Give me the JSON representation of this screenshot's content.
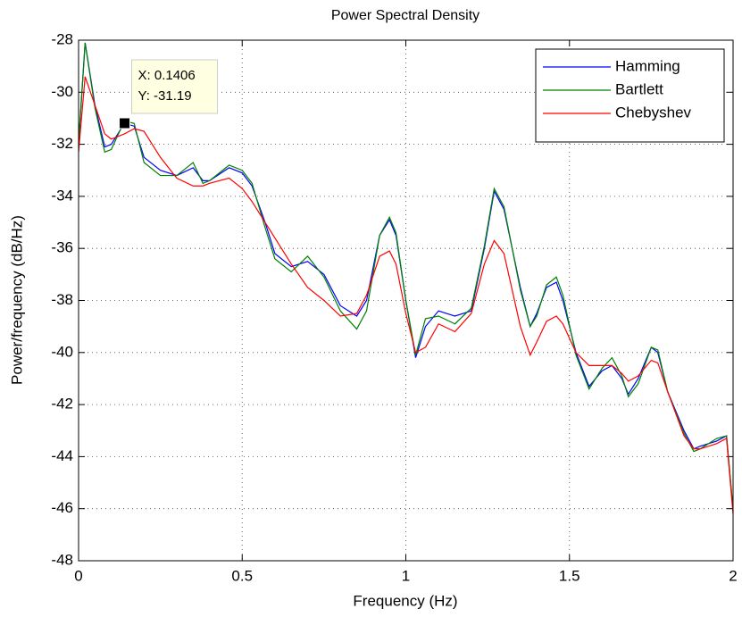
{
  "chart_data": {
    "type": "line",
    "title": "Power Spectral Density",
    "x_label": "Frequency (Hz)",
    "y_label": "Power/frequency (dB/Hz)",
    "x": [
      0,
      0.02,
      0.05,
      0.08,
      0.1,
      0.14,
      0.17,
      0.2,
      0.25,
      0.3,
      0.35,
      0.38,
      0.4,
      0.46,
      0.5,
      0.53,
      0.57,
      0.6,
      0.65,
      0.7,
      0.75,
      0.8,
      0.85,
      0.88,
      0.92,
      0.95,
      0.97,
      1.0,
      1.03,
      1.06,
      1.1,
      1.15,
      1.2,
      1.24,
      1.27,
      1.3,
      1.35,
      1.38,
      1.4,
      1.43,
      1.46,
      1.48,
      1.52,
      1.56,
      1.6,
      1.63,
      1.66,
      1.68,
      1.71,
      1.75,
      1.77,
      1.8,
      1.85,
      1.88,
      1.9,
      1.95,
      1.98,
      2.0
    ],
    "series": [
      {
        "name": "Hamming",
        "color": "#0000ff",
        "values": [
          -32.0,
          -28.1,
          -30.5,
          -32.1,
          -32.0,
          -31.2,
          -31.3,
          -32.5,
          -33.0,
          -33.2,
          -32.9,
          -33.4,
          -33.4,
          -32.9,
          -33.1,
          -33.6,
          -35.0,
          -36.2,
          -36.7,
          -36.5,
          -37.0,
          -38.2,
          -38.6,
          -38.0,
          -35.5,
          -34.9,
          -35.5,
          -38.0,
          -40.2,
          -39.0,
          -38.4,
          -38.6,
          -38.4,
          -36.0,
          -33.8,
          -34.5,
          -37.5,
          -39.0,
          -38.5,
          -37.5,
          -37.3,
          -38.0,
          -40.0,
          -41.3,
          -40.7,
          -40.5,
          -41.0,
          -41.6,
          -41.0,
          -39.8,
          -40.0,
          -41.5,
          -43.0,
          -43.7,
          -43.6,
          -43.4,
          -43.2,
          -46.1
        ]
      },
      {
        "name": "Bartlett",
        "color": "#008000",
        "values": [
          -31.9,
          -28.1,
          -30.6,
          -32.3,
          -32.2,
          -31.1,
          -31.2,
          -32.7,
          -33.2,
          -33.2,
          -32.7,
          -33.5,
          -33.4,
          -32.8,
          -33.0,
          -33.5,
          -35.2,
          -36.4,
          -36.9,
          -36.3,
          -37.1,
          -38.4,
          -39.1,
          -38.4,
          -35.5,
          -34.8,
          -35.4,
          -38.0,
          -40.1,
          -38.7,
          -38.6,
          -38.9,
          -38.3,
          -35.9,
          -33.7,
          -34.4,
          -37.6,
          -39.0,
          -38.6,
          -37.4,
          -37.1,
          -37.8,
          -40.1,
          -41.4,
          -40.6,
          -40.2,
          -40.9,
          -41.7,
          -41.2,
          -39.8,
          -39.9,
          -41.5,
          -43.1,
          -43.8,
          -43.7,
          -43.3,
          -43.2,
          -46.0
        ]
      },
      {
        "name": "Chebyshev",
        "color": "#ff0000",
        "values": [
          -32.3,
          -29.4,
          -30.5,
          -31.6,
          -31.8,
          -31.6,
          -31.4,
          -31.5,
          -32.5,
          -33.3,
          -33.6,
          -33.6,
          -33.5,
          -33.3,
          -33.7,
          -34.2,
          -35.0,
          -35.6,
          -36.6,
          -37.5,
          -38.0,
          -38.6,
          -38.5,
          -37.8,
          -36.3,
          -36.1,
          -36.6,
          -38.5,
          -40.0,
          -39.8,
          -38.9,
          -39.2,
          -38.5,
          -36.6,
          -35.7,
          -36.2,
          -39.0,
          -40.1,
          -39.6,
          -38.8,
          -38.6,
          -38.9,
          -40.0,
          -40.5,
          -40.5,
          -40.5,
          -40.8,
          -41.1,
          -40.9,
          -40.3,
          -40.4,
          -41.5,
          -43.2,
          -43.7,
          -43.7,
          -43.5,
          -43.3,
          -46.2
        ]
      }
    ],
    "xlim": [
      0,
      2
    ],
    "ylim": [
      -48,
      -28
    ],
    "xticks": [
      0,
      0.5,
      1,
      1.5,
      2
    ],
    "yticks": [
      -48,
      -46,
      -44,
      -42,
      -40,
      -38,
      -36,
      -34,
      -32,
      -30,
      -28
    ],
    "grid": true,
    "legend": "upper right",
    "datatip": {
      "x": 0.1406,
      "y": -31.19,
      "x_text": "X: 0.1406",
      "y_text": "Y: -31.19"
    }
  }
}
